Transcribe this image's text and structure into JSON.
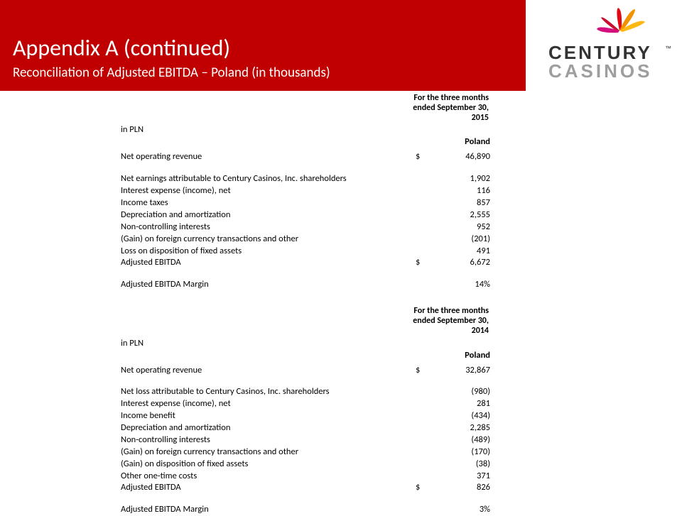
{
  "header": {
    "title": "Appendix A (continued)",
    "subtitle": "Reconciliation of Adjusted EBITDA – Poland (in thousands)",
    "bg_color": "#c00000",
    "text_color": "#ffffff"
  },
  "logo": {
    "line1": "CENTURY",
    "line2": "CASINOS",
    "tm": "™",
    "burst_colors": [
      "#e30613",
      "#f39200",
      "#c8102e",
      "#fdb813",
      "#d40f7d"
    ],
    "text_color_top": "#333333",
    "text_color_bottom": "#9e9e9e"
  },
  "section_2015": {
    "period_lines": [
      "For the three months",
      "ended September 30,",
      "2015"
    ],
    "currency_label": "in PLN",
    "column": "Poland",
    "rows": [
      {
        "label": "Net operating revenue",
        "currency": "$",
        "value": "46,890",
        "indent": false
      },
      {
        "gap": true
      },
      {
        "label": "Net earnings attributable to Century Casinos, Inc. shareholders",
        "value": "1,902",
        "indent": false
      },
      {
        "label": "Interest expense (income), net",
        "value": "116",
        "indent": true
      },
      {
        "label": "Income taxes",
        "value": "857",
        "indent": true
      },
      {
        "label": "Depreciation and amortization",
        "value": "2,555",
        "indent": true
      },
      {
        "label": "Non-controlling interests",
        "value": "952",
        "indent": true
      },
      {
        "label": "(Gain) on foreign currency transactions and other",
        "value": "(201)",
        "indent": true
      },
      {
        "label": "Loss on disposition of fixed assets",
        "value": "491",
        "indent": true
      },
      {
        "label": "Adjusted EBITDA",
        "currency": "$",
        "value": "6,672",
        "indent": false
      },
      {
        "gap": true
      },
      {
        "label": "Adjusted EBITDA Margin",
        "value": "14%",
        "indent": false
      }
    ]
  },
  "section_2014": {
    "period_lines": [
      "For the three months",
      "ended September 30,",
      "2014"
    ],
    "currency_label": "in PLN",
    "column": "Poland",
    "rows": [
      {
        "label": "Net operating revenue",
        "currency": "$",
        "value": "32,867",
        "indent": false
      },
      {
        "gap": true
      },
      {
        "label": "Net loss attributable to Century Casinos, Inc. shareholders",
        "value": "(980)",
        "indent": false
      },
      {
        "label": "Interest expense (income), net",
        "value": "281",
        "indent": true
      },
      {
        "label": "Income benefit",
        "value": "(434)",
        "indent": true
      },
      {
        "label": "Depreciation and amortization",
        "value": "2,285",
        "indent": true
      },
      {
        "label": "Non-controlling interests",
        "value": "(489)",
        "indent": true
      },
      {
        "label": "(Gain) on foreign currency transactions and other",
        "value": "(170)",
        "indent": true
      },
      {
        "label": "(Gain) on disposition of fixed assets",
        "value": "(38)",
        "indent": true
      },
      {
        "label": "Other one-time costs",
        "value": "371",
        "indent": true
      },
      {
        "label": "Adjusted EBITDA",
        "currency": "$",
        "value": "826",
        "indent": false
      },
      {
        "gap": true
      },
      {
        "label": "Adjusted EBITDA Margin",
        "value": "3%",
        "indent": false
      }
    ]
  }
}
